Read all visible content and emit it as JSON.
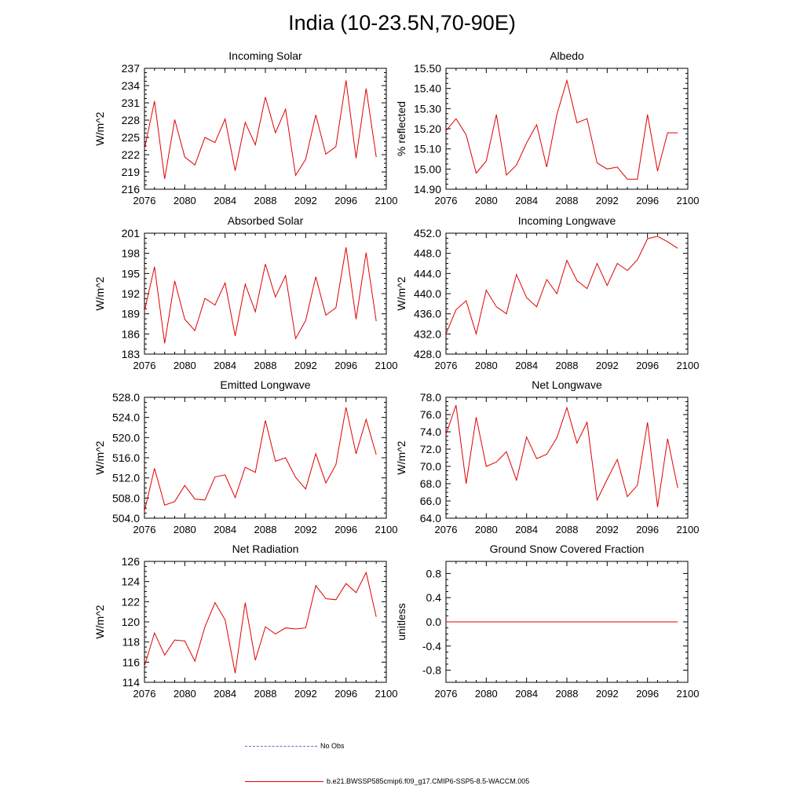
{
  "title": "India (10-23.5N,70-90E)",
  "legend": {
    "items": [
      {
        "label": "No Obs",
        "color": "#6b6bc8",
        "style": "dashed"
      },
      {
        "label": "b.e21.BWSSP585cmip6.f09_g17.CMIP6-SSP5-8.5-WACCM.005",
        "color": "#e00000",
        "style": "solid"
      }
    ]
  },
  "chart_data": [
    {
      "type": "line",
      "title": "Incoming Solar",
      "ylabel": "W/m^2",
      "xlabel": "",
      "xlim": [
        2076,
        2100
      ],
      "ylim": [
        216,
        237
      ],
      "yticks": [
        216,
        219,
        222,
        225,
        228,
        231,
        234,
        237
      ],
      "ydecimals": 0,
      "xticks": [
        2076,
        2080,
        2084,
        2088,
        2092,
        2096,
        2100
      ],
      "color": "#e00000",
      "x": [
        2076,
        2077,
        2078,
        2079,
        2080,
        2081,
        2082,
        2083,
        2084,
        2085,
        2086,
        2087,
        2088,
        2089,
        2090,
        2091,
        2092,
        2093,
        2094,
        2095,
        2096,
        2097,
        2098,
        2099
      ],
      "values": [
        223.0,
        231.3,
        217.8,
        228.1,
        221.6,
        220.2,
        225.0,
        224.1,
        228.2,
        219.2,
        227.6,
        223.7,
        232.0,
        225.8,
        229.9,
        218.4,
        221.2,
        228.9,
        222.1,
        223.4,
        234.9,
        221.4,
        233.5,
        221.6
      ]
    },
    {
      "type": "line",
      "title": "Albedo",
      "ylabel": "% reflected",
      "xlabel": "",
      "xlim": [
        2076,
        2100
      ],
      "ylim": [
        14.9,
        15.5
      ],
      "yticks": [
        14.9,
        15.0,
        15.1,
        15.2,
        15.3,
        15.4,
        15.5
      ],
      "ydecimals": 2,
      "xticks": [
        2076,
        2080,
        2084,
        2088,
        2092,
        2096,
        2100
      ],
      "color": "#e00000",
      "x": [
        2076,
        2077,
        2078,
        2079,
        2080,
        2081,
        2082,
        2083,
        2084,
        2085,
        2086,
        2087,
        2088,
        2089,
        2090,
        2091,
        2092,
        2093,
        2094,
        2095,
        2096,
        2097,
        2098,
        2099
      ],
      "values": [
        15.19,
        15.25,
        15.17,
        14.98,
        15.04,
        15.27,
        14.97,
        15.02,
        15.13,
        15.22,
        15.01,
        15.27,
        15.44,
        15.23,
        15.25,
        15.03,
        15.0,
        15.01,
        14.95,
        14.95,
        15.27,
        14.99,
        15.18,
        15.18
      ]
    },
    {
      "type": "line",
      "title": "Absorbed Solar",
      "ylabel": "W/m^2",
      "xlabel": "",
      "xlim": [
        2076,
        2100
      ],
      "ylim": [
        183,
        201
      ],
      "yticks": [
        183,
        186,
        189,
        192,
        195,
        198,
        201
      ],
      "ydecimals": 0,
      "xticks": [
        2076,
        2080,
        2084,
        2088,
        2092,
        2096,
        2100
      ],
      "color": "#e00000",
      "x": [
        2076,
        2077,
        2078,
        2079,
        2080,
        2081,
        2082,
        2083,
        2084,
        2085,
        2086,
        2087,
        2088,
        2089,
        2090,
        2091,
        2092,
        2093,
        2094,
        2095,
        2096,
        2097,
        2098,
        2099
      ],
      "values": [
        189.4,
        196.0,
        184.6,
        193.9,
        188.2,
        186.5,
        191.3,
        190.3,
        193.6,
        185.7,
        193.4,
        189.3,
        196.4,
        191.5,
        194.7,
        185.3,
        188.0,
        194.5,
        188.8,
        189.9,
        198.9,
        188.2,
        198.1,
        187.9
      ]
    },
    {
      "type": "line",
      "title": "Incoming Longwave",
      "ylabel": "W/m^2",
      "xlabel": "",
      "xlim": [
        2076,
        2100
      ],
      "ylim": [
        428,
        452
      ],
      "yticks": [
        428,
        432,
        436,
        440,
        444,
        448,
        452
      ],
      "ydecimals": 1,
      "xticks": [
        2076,
        2080,
        2084,
        2088,
        2092,
        2096,
        2100
      ],
      "color": "#e00000",
      "x": [
        2076,
        2077,
        2078,
        2079,
        2080,
        2081,
        2082,
        2083,
        2084,
        2085,
        2086,
        2087,
        2088,
        2089,
        2090,
        2091,
        2092,
        2093,
        2094,
        2095,
        2096,
        2097,
        2098,
        2099
      ],
      "values": [
        432.0,
        436.8,
        438.6,
        432.0,
        440.7,
        437.4,
        436.0,
        443.8,
        439.2,
        437.4,
        442.8,
        440.0,
        446.6,
        442.6,
        441.0,
        446.0,
        441.6,
        446.0,
        444.6,
        446.7,
        450.9,
        451.4,
        450.3,
        449.0
      ]
    },
    {
      "type": "line",
      "title": "Emitted Longwave",
      "ylabel": "W/m^2",
      "xlabel": "",
      "xlim": [
        2076,
        2100
      ],
      "ylim": [
        504,
        528
      ],
      "yticks": [
        504,
        508,
        512,
        516,
        520,
        524,
        528
      ],
      "ydecimals": 1,
      "xticks": [
        2076,
        2080,
        2084,
        2088,
        2092,
        2096,
        2100
      ],
      "color": "#e00000",
      "x": [
        2076,
        2077,
        2078,
        2079,
        2080,
        2081,
        2082,
        2083,
        2084,
        2085,
        2086,
        2087,
        2088,
        2089,
        2090,
        2091,
        2092,
        2093,
        2094,
        2095,
        2096,
        2097,
        2098,
        2099
      ],
      "values": [
        505.4,
        513.9,
        506.6,
        507.3,
        510.5,
        507.8,
        507.6,
        512.2,
        512.6,
        508.1,
        514.1,
        513.1,
        523.4,
        515.3,
        516.0,
        512.1,
        509.8,
        516.8,
        511.0,
        514.6,
        526.0,
        516.8,
        523.6,
        516.6
      ]
    },
    {
      "type": "line",
      "title": "Net Longwave",
      "ylabel": "W/m^2",
      "xlabel": "",
      "xlim": [
        2076,
        2100
      ],
      "ylim": [
        64,
        78
      ],
      "yticks": [
        64,
        66,
        68,
        70,
        72,
        74,
        76,
        78
      ],
      "ydecimals": 1,
      "xticks": [
        2076,
        2080,
        2084,
        2088,
        2092,
        2096,
        2100
      ],
      "color": "#e00000",
      "x": [
        2076,
        2077,
        2078,
        2079,
        2080,
        2081,
        2082,
        2083,
        2084,
        2085,
        2086,
        2087,
        2088,
        2089,
        2090,
        2091,
        2092,
        2093,
        2094,
        2095,
        2096,
        2097,
        2098,
        2099
      ],
      "values": [
        73.7,
        77.1,
        68.0,
        75.7,
        70.0,
        70.5,
        71.7,
        68.4,
        73.4,
        70.9,
        71.4,
        73.3,
        76.8,
        72.7,
        75.1,
        66.1,
        68.5,
        70.8,
        66.5,
        67.8,
        75.1,
        65.3,
        73.2,
        67.5
      ]
    },
    {
      "type": "line",
      "title": "Net Radiation",
      "ylabel": "W/m^2",
      "xlabel": "",
      "xlim": [
        2076,
        2100
      ],
      "ylim": [
        114,
        126
      ],
      "yticks": [
        114,
        116,
        118,
        120,
        122,
        124,
        126
      ],
      "ydecimals": 0,
      "xticks": [
        2076,
        2080,
        2084,
        2088,
        2092,
        2096,
        2100
      ],
      "color": "#e00000",
      "x": [
        2076,
        2077,
        2078,
        2079,
        2080,
        2081,
        2082,
        2083,
        2084,
        2085,
        2086,
        2087,
        2088,
        2089,
        2090,
        2091,
        2092,
        2093,
        2094,
        2095,
        2096,
        2097,
        2098,
        2099
      ],
      "values": [
        115.6,
        118.9,
        116.7,
        118.2,
        118.1,
        116.1,
        119.5,
        121.9,
        120.2,
        114.9,
        121.9,
        116.2,
        119.5,
        118.8,
        119.4,
        119.3,
        119.4,
        123.6,
        122.3,
        122.2,
        123.8,
        122.9,
        124.9,
        120.5
      ]
    },
    {
      "type": "line",
      "title": "Ground Snow Covered Fraction",
      "ylabel": "unitless",
      "xlabel": "",
      "xlim": [
        2076,
        2100
      ],
      "ylim": [
        -1.0,
        1.0
      ],
      "yticks": [
        -0.8,
        -0.4,
        0.0,
        0.4,
        0.8
      ],
      "ydecimals": 1,
      "xticks": [
        2076,
        2080,
        2084,
        2088,
        2092,
        2096,
        2100
      ],
      "color": "#e00000",
      "x": [
        2076,
        2077,
        2078,
        2079,
        2080,
        2081,
        2082,
        2083,
        2084,
        2085,
        2086,
        2087,
        2088,
        2089,
        2090,
        2091,
        2092,
        2093,
        2094,
        2095,
        2096,
        2097,
        2098,
        2099
      ],
      "values": [
        0,
        0,
        0,
        0,
        0,
        0,
        0,
        0,
        0,
        0,
        0,
        0,
        0,
        0,
        0,
        0,
        0,
        0,
        0,
        0,
        0,
        0,
        0,
        0
      ]
    }
  ]
}
